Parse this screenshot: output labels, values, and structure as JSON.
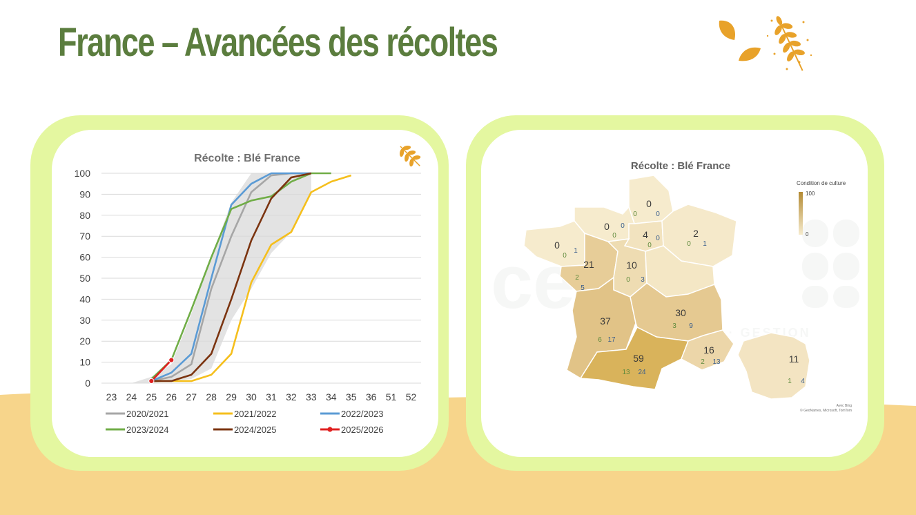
{
  "page": {
    "title": "France – Avancées des récoltes",
    "colors": {
      "title": "#5b7d3e",
      "card_border": "#e4f7a0",
      "background_band": "#f7d58b",
      "wheat": "#e8a22a"
    }
  },
  "decoration": {
    "icon": "wheat-leaves-icon"
  },
  "chart_data": [
    {
      "type": "line",
      "title": "Récolte : Blé France",
      "x": [
        "23",
        "24",
        "25",
        "26",
        "27",
        "28",
        "29",
        "30",
        "31",
        "32",
        "33",
        "34",
        "35",
        "36",
        "51",
        "52"
      ],
      "ylim": [
        0,
        100
      ],
      "yticks": [
        "0",
        "10",
        "20",
        "30",
        "40",
        "50",
        "60",
        "70",
        "80",
        "90",
        "100"
      ],
      "grid": true,
      "legend_position": "bottom",
      "band": {
        "lower": [
          null,
          null,
          0,
          1,
          2,
          7,
          30,
          45,
          62,
          72,
          90,
          null,
          null,
          null,
          null,
          null
        ],
        "upper": [
          null,
          0,
          3,
          9,
          33,
          60,
          86,
          100,
          100,
          100,
          100,
          null,
          null,
          null,
          null,
          null
        ]
      },
      "series": [
        {
          "name": "2020/2021",
          "color": "#a6a6a6",
          "values": [
            null,
            null,
            1,
            3,
            9,
            45,
            70,
            91,
            99,
            100,
            100,
            null,
            null,
            null,
            null,
            null
          ]
        },
        {
          "name": "2021/2022",
          "color": "#f5bf1d",
          "values": [
            null,
            null,
            1,
            1,
            1,
            4,
            14,
            48,
            66,
            72,
            91,
            96,
            99,
            null,
            null,
            null
          ]
        },
        {
          "name": "2022/2023",
          "color": "#5b9bd5",
          "values": [
            null,
            null,
            1,
            5,
            14,
            50,
            85,
            95,
            100,
            100,
            100,
            null,
            null,
            null,
            null,
            null
          ]
        },
        {
          "name": "2023/2024",
          "color": "#70ad47",
          "values": [
            null,
            null,
            2,
            11,
            35,
            60,
            83,
            87,
            89,
            96,
            100,
            100,
            null,
            null,
            null,
            null
          ]
        },
        {
          "name": "2024/2025",
          "color": "#7b3410",
          "values": [
            null,
            null,
            1,
            1,
            4,
            14,
            40,
            68,
            88,
            98,
            100,
            null,
            null,
            null,
            null,
            null
          ]
        },
        {
          "name": "2025/2026",
          "color": "#e02020",
          "values": [
            null,
            null,
            1,
            11,
            null,
            null,
            null,
            null,
            null,
            null,
            null,
            null,
            null,
            null,
            null,
            null
          ],
          "markers": true
        }
      ]
    },
    {
      "type": "map",
      "title": "Récolte : Blé France",
      "legend": {
        "title": "Condition de culture",
        "max": "100",
        "min": "0"
      },
      "attribution_1": "Avec Bing",
      "attribution_2": "© GeoNames, Microsoft, TomTom",
      "watermark": "cerefi",
      "watermark_sub": "AUDIT · CONSEIL · GESTION",
      "regions": [
        {
          "name": "Hauts-de-France",
          "value": "0",
          "a": "0",
          "b": "0",
          "color": "#f6ebcd"
        },
        {
          "name": "Normandie",
          "value": "0",
          "a": "0",
          "b": "0",
          "color": "#f6ebcd"
        },
        {
          "name": "Île-de-France",
          "value": "4",
          "a": "0",
          "b": "0",
          "color": "#f2e3bf"
        },
        {
          "name": "Grand Est",
          "value": "2",
          "a": "0",
          "b": "1",
          "color": "#f5e9ca"
        },
        {
          "name": "Bretagne",
          "value": "0",
          "a": "0",
          "b": "1",
          "color": "#f6ebcd"
        },
        {
          "name": "Pays de la Loire",
          "value": "21",
          "a": "2",
          "b": "5",
          "color": "#e7cd98"
        },
        {
          "name": "Centre-Val de Loire",
          "value": "10",
          "a": "0",
          "b": "3",
          "color": "#eedcb2"
        },
        {
          "name": "Bourgogne-Franche-Comté",
          "value": "",
          "a": "",
          "b": "",
          "color": "#f4e7c5"
        },
        {
          "name": "Nouvelle-Aquitaine",
          "value": "37",
          "a": "6",
          "b": "17",
          "color": "#e1c387"
        },
        {
          "name": "Auvergne-Rhône-Alpes",
          "value": "30",
          "a": "3",
          "b": "9",
          "color": "#e5c991"
        },
        {
          "name": "Occitanie",
          "value": "59",
          "a": "13",
          "b": "24",
          "color": "#d9b35b"
        },
        {
          "name": "Provence-Alpes-Côte d'Azur",
          "value": "16",
          "a": "2",
          "b": "13",
          "color": "#ecd6a9"
        },
        {
          "name": "France",
          "value": "11",
          "a": "1",
          "b": "4",
          "color": "#f3e4c2"
        }
      ]
    }
  ]
}
